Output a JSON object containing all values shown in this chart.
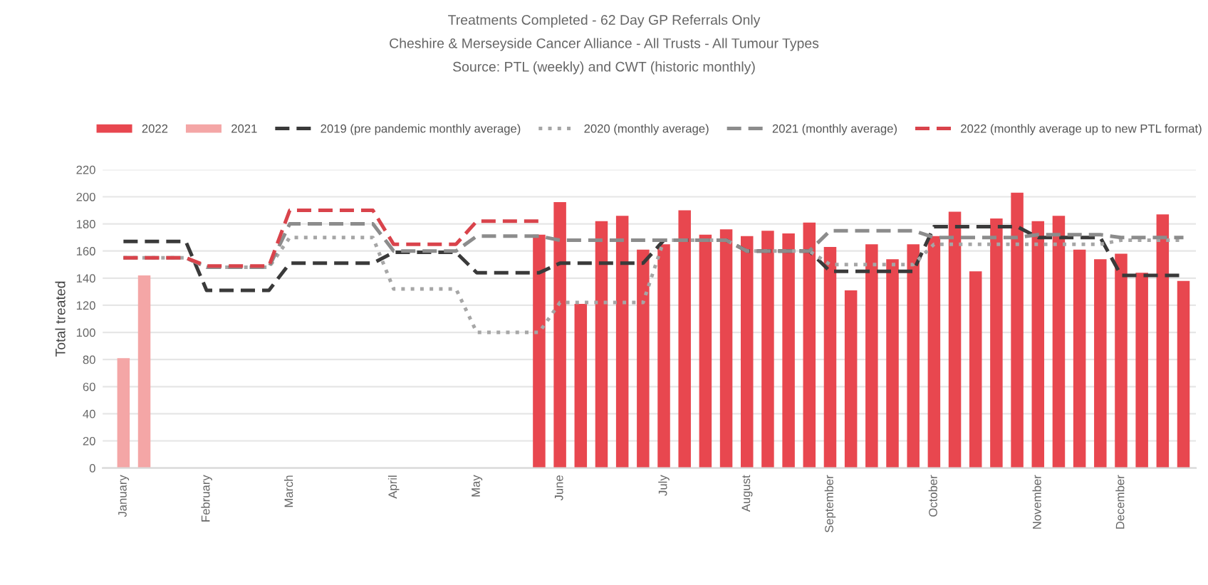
{
  "chart_data": {
    "type": "bar",
    "title": "Treatments Completed - 62 Day GP Referrals Only",
    "subtitle": "Cheshire & Merseyside Cancer Alliance - All Trusts - All Tumour Types",
    "annotations": [
      "Source: PTL (weekly) and CWT (historic monthly)"
    ],
    "ylabel": "Total treated",
    "categories": [
      "January",
      null,
      null,
      null,
      "February",
      null,
      null,
      null,
      "March",
      null,
      null,
      null,
      null,
      "April",
      null,
      null,
      null,
      "May",
      null,
      null,
      null,
      "June",
      null,
      null,
      null,
      null,
      "July",
      null,
      null,
      null,
      "August",
      null,
      null,
      null,
      "September",
      null,
      null,
      null,
      null,
      "October",
      null,
      null,
      null,
      null,
      "November",
      null,
      null,
      null,
      "December",
      null,
      null,
      null
    ],
    "ylim": [
      0,
      220
    ],
    "yticks": [
      0,
      20,
      40,
      60,
      80,
      100,
      120,
      140,
      160,
      180,
      200,
      220
    ],
    "grid": "y",
    "legend": "top",
    "series": [
      {
        "name": "2022",
        "color": "#e8474f",
        "values": [
          null,
          null,
          null,
          null,
          null,
          null,
          null,
          null,
          null,
          null,
          null,
          null,
          null,
          null,
          null,
          null,
          null,
          null,
          null,
          null,
          172,
          196,
          121,
          182,
          186,
          161,
          165,
          190,
          172,
          176,
          171,
          175,
          173,
          181,
          163,
          131,
          165,
          154,
          165,
          171,
          189,
          145,
          184,
          203,
          182,
          186,
          161,
          154,
          158,
          144,
          187,
          138
        ]
      },
      {
        "name": "2021",
        "color": "#f4a6a6",
        "values": [
          81,
          142,
          null,
          null,
          null,
          null,
          null,
          null,
          null,
          null,
          null,
          null,
          null,
          null,
          null,
          null,
          null,
          null,
          null,
          null,
          null,
          null,
          null,
          null,
          null,
          null,
          null,
          null,
          null,
          null,
          null,
          null,
          null,
          null,
          null,
          null,
          null,
          null,
          null,
          null,
          null,
          null,
          null,
          null,
          null,
          null,
          null,
          null,
          null,
          null,
          null,
          null
        ]
      },
      {
        "name": "2019 (pre pandemic monthly average)",
        "type": "line",
        "line_style": "dashed",
        "color": "#3a3a3a",
        "values": [
          167,
          167,
          167,
          167,
          131,
          131,
          131,
          131,
          151,
          151,
          151,
          151,
          151,
          159,
          159,
          159,
          159,
          144,
          144,
          144,
          144,
          151,
          151,
          151,
          151,
          151,
          168,
          168,
          168,
          168,
          160,
          160,
          160,
          160,
          145,
          145,
          145,
          145,
          145,
          178,
          178,
          178,
          178,
          178,
          170,
          170,
          170,
          170,
          142,
          142,
          142,
          142
        ]
      },
      {
        "name": "2020 (monthly average)",
        "type": "line",
        "line_style": "dotted",
        "color": "#a6a6a6",
        "values": [
          155,
          155,
          155,
          155,
          148,
          148,
          148,
          148,
          170,
          170,
          170,
          170,
          170,
          132,
          132,
          132,
          132,
          100,
          100,
          100,
          100,
          122,
          122,
          122,
          122,
          122,
          168,
          168,
          168,
          168,
          160,
          160,
          160,
          160,
          150,
          150,
          150,
          150,
          150,
          165,
          165,
          165,
          165,
          165,
          165,
          165,
          165,
          165,
          168,
          168,
          168,
          168
        ]
      },
      {
        "name": "2021 (monthly average)",
        "type": "line",
        "line_style": "dashed",
        "color": "#8c8c8c",
        "values": [
          155,
          155,
          155,
          155,
          148,
          148,
          148,
          148,
          180,
          180,
          180,
          180,
          180,
          160,
          160,
          160,
          160,
          171,
          171,
          171,
          171,
          168,
          168,
          168,
          168,
          168,
          168,
          168,
          168,
          168,
          160,
          160,
          160,
          160,
          175,
          175,
          175,
          175,
          175,
          170,
          170,
          170,
          170,
          170,
          172,
          172,
          172,
          172,
          170,
          170,
          170,
          170
        ]
      },
      {
        "name": "2022 (monthly average up to new PTL format)",
        "type": "line",
        "line_style": "dashed",
        "color": "#d9434b",
        "values": [
          155,
          155,
          155,
          155,
          149,
          149,
          149,
          149,
          190,
          190,
          190,
          190,
          190,
          165,
          165,
          165,
          165,
          182,
          182,
          182,
          182,
          null,
          null,
          null,
          null,
          null,
          null,
          null,
          null,
          null,
          null,
          null,
          null,
          null,
          null,
          null,
          null,
          null,
          null,
          null,
          null,
          null,
          null,
          null,
          null,
          null,
          null,
          null,
          null,
          null,
          null,
          null
        ]
      }
    ]
  }
}
